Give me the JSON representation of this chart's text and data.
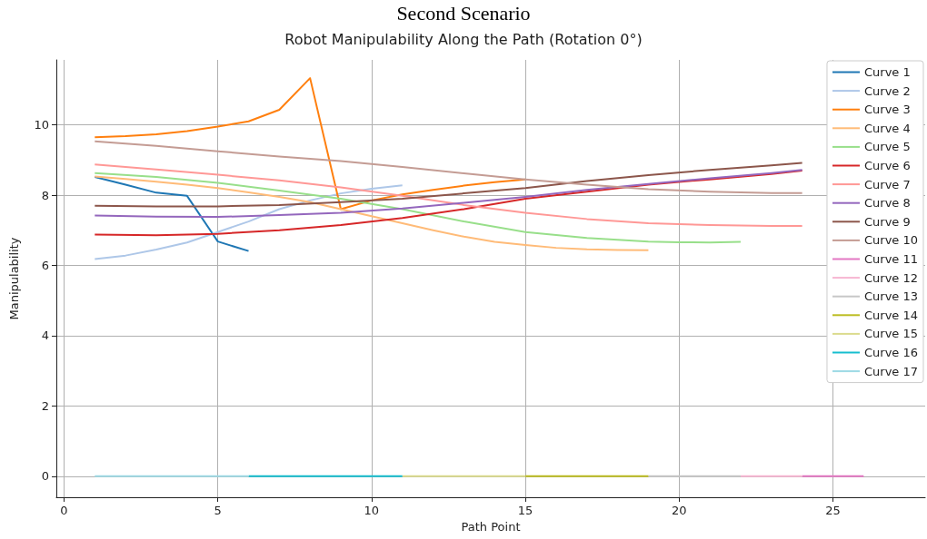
{
  "chart_data": {
    "type": "line",
    "title": "Second Scenario",
    "subtitle": "Robot Manipulability Along the Path (Rotation 0°)",
    "xlabel": "Path Point",
    "ylabel": "Manipulability",
    "xlim": [
      -0.25,
      28
    ],
    "xticks": [
      0,
      5,
      10,
      15,
      20,
      25
    ],
    "ylim": [
      -0.6,
      11.85
    ],
    "yticks": [
      0,
      2,
      4,
      6,
      8,
      10
    ],
    "grid": true,
    "legend": "top right",
    "marker": "none",
    "line_style": "solid",
    "series": [
      {
        "name": "Curve 1",
        "color": "#1f77b4",
        "x": [
          1,
          2,
          3,
          4,
          5,
          6
        ],
        "values": [
          8.52,
          8.3,
          8.07,
          7.98,
          6.68,
          6.41
        ]
      },
      {
        "name": "Curve 2",
        "color": "#aec7e8",
        "x": [
          1,
          2,
          3,
          4,
          5,
          6,
          7,
          8,
          9,
          10,
          11
        ],
        "values": [
          6.18,
          6.28,
          6.45,
          6.65,
          6.95,
          7.25,
          7.6,
          7.85,
          8.05,
          8.18,
          8.28
        ]
      },
      {
        "name": "Curve 3",
        "color": "#ff7f0e",
        "x": [
          1,
          2,
          3,
          4,
          5,
          6,
          7,
          8,
          9,
          10,
          11,
          12,
          13,
          14,
          15
        ],
        "values": [
          9.65,
          9.68,
          9.73,
          9.82,
          9.95,
          10.1,
          10.43,
          11.33,
          7.6,
          7.85,
          8.02,
          8.15,
          8.27,
          8.37,
          8.45
        ]
      },
      {
        "name": "Curve 4",
        "color": "#ffbb78",
        "x": [
          1,
          2,
          3,
          4,
          5,
          6,
          7,
          8,
          9,
          10,
          11,
          12,
          13,
          14,
          15,
          16,
          17,
          18,
          19
        ],
        "values": [
          8.53,
          8.46,
          8.38,
          8.3,
          8.2,
          8.08,
          7.95,
          7.8,
          7.6,
          7.4,
          7.2,
          7.0,
          6.82,
          6.67,
          6.58,
          6.5,
          6.46,
          6.44,
          6.43
        ]
      },
      {
        "name": "Curve 5",
        "color": "#98df8a",
        "x": [
          1,
          3,
          5,
          7,
          9,
          11,
          13,
          15,
          17,
          19,
          20,
          21,
          22
        ],
        "values": [
          8.63,
          8.52,
          8.35,
          8.13,
          7.9,
          7.6,
          7.25,
          6.95,
          6.78,
          6.68,
          6.66,
          6.65,
          6.67
        ]
      },
      {
        "name": "Curve 6",
        "color": "#d62728",
        "x": [
          1,
          3,
          5,
          7,
          9,
          11,
          13,
          15,
          17,
          19,
          21,
          23,
          24
        ],
        "values": [
          6.88,
          6.86,
          6.9,
          7.0,
          7.15,
          7.35,
          7.6,
          7.9,
          8.1,
          8.3,
          8.45,
          8.6,
          8.7
        ]
      },
      {
        "name": "Curve 7",
        "color": "#ff9896",
        "x": [
          1,
          3,
          5,
          7,
          9,
          11,
          13,
          15,
          17,
          19,
          21,
          23,
          24
        ],
        "values": [
          8.87,
          8.73,
          8.58,
          8.42,
          8.22,
          7.98,
          7.72,
          7.5,
          7.32,
          7.2,
          7.15,
          7.12,
          7.12
        ]
      },
      {
        "name": "Curve 8",
        "color": "#9467bd",
        "x": [
          1,
          3,
          5,
          7,
          9,
          11,
          13,
          15,
          17,
          19,
          21,
          23,
          24
        ],
        "values": [
          7.42,
          7.39,
          7.38,
          7.43,
          7.5,
          7.62,
          7.78,
          7.95,
          8.15,
          8.32,
          8.48,
          8.63,
          8.72
        ]
      },
      {
        "name": "Curve 9",
        "color": "#8c564b",
        "x": [
          1,
          3,
          5,
          7,
          9,
          11,
          13,
          15,
          17,
          19,
          21,
          23,
          24
        ],
        "values": [
          7.7,
          7.68,
          7.68,
          7.72,
          7.8,
          7.9,
          8.05,
          8.2,
          8.4,
          8.57,
          8.72,
          8.85,
          8.92
        ]
      },
      {
        "name": "Curve 10",
        "color": "#c49c94",
        "x": [
          1,
          3,
          5,
          7,
          9,
          11,
          13,
          15,
          17,
          19,
          21,
          23,
          24
        ],
        "values": [
          9.53,
          9.4,
          9.25,
          9.1,
          8.97,
          8.8,
          8.62,
          8.45,
          8.3,
          8.17,
          8.1,
          8.06,
          8.06
        ]
      },
      {
        "name": "Curve 11",
        "color": "#e377c2",
        "x": [
          24,
          25,
          26
        ],
        "values": [
          0,
          0,
          0
        ]
      },
      {
        "name": "Curve 12",
        "color": "#f7b6d2",
        "x": [
          22,
          23,
          24
        ],
        "values": [
          0,
          0,
          0
        ]
      },
      {
        "name": "Curve 13",
        "color": "#c7c7c7",
        "x": [
          19,
          20,
          21,
          22
        ],
        "values": [
          0,
          0,
          0,
          0
        ]
      },
      {
        "name": "Curve 14",
        "color": "#bcbd22",
        "x": [
          15,
          16,
          17,
          18,
          19
        ],
        "values": [
          0,
          0,
          0,
          0,
          0
        ]
      },
      {
        "name": "Curve 15",
        "color": "#dbdb8d",
        "x": [
          11,
          12,
          13,
          14,
          15
        ],
        "values": [
          0,
          0,
          0,
          0,
          0
        ]
      },
      {
        "name": "Curve 16",
        "color": "#17becf",
        "x": [
          6,
          7,
          8,
          9,
          10,
          11
        ],
        "values": [
          0,
          0,
          0,
          0,
          0,
          0
        ]
      },
      {
        "name": "Curve 17",
        "color": "#9edae5",
        "x": [
          1,
          2,
          3,
          4,
          5,
          6
        ],
        "values": [
          0,
          0,
          0,
          0,
          0,
          0
        ]
      }
    ]
  }
}
